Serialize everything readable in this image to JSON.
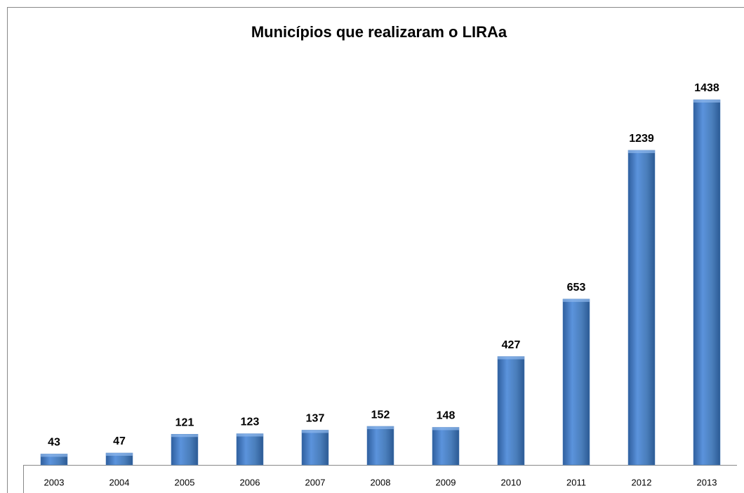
{
  "chart_data": {
    "type": "bar",
    "title": "Municípios que realizaram o LIRAa",
    "categories": [
      "2003",
      "2004",
      "2005",
      "2006",
      "2007",
      "2008",
      "2009",
      "2010",
      "2011",
      "2012",
      "2013"
    ],
    "values": [
      43,
      47,
      121,
      123,
      137,
      152,
      148,
      427,
      653,
      1239,
      1438
    ],
    "color": "#4a7ebb",
    "grid": false
  }
}
